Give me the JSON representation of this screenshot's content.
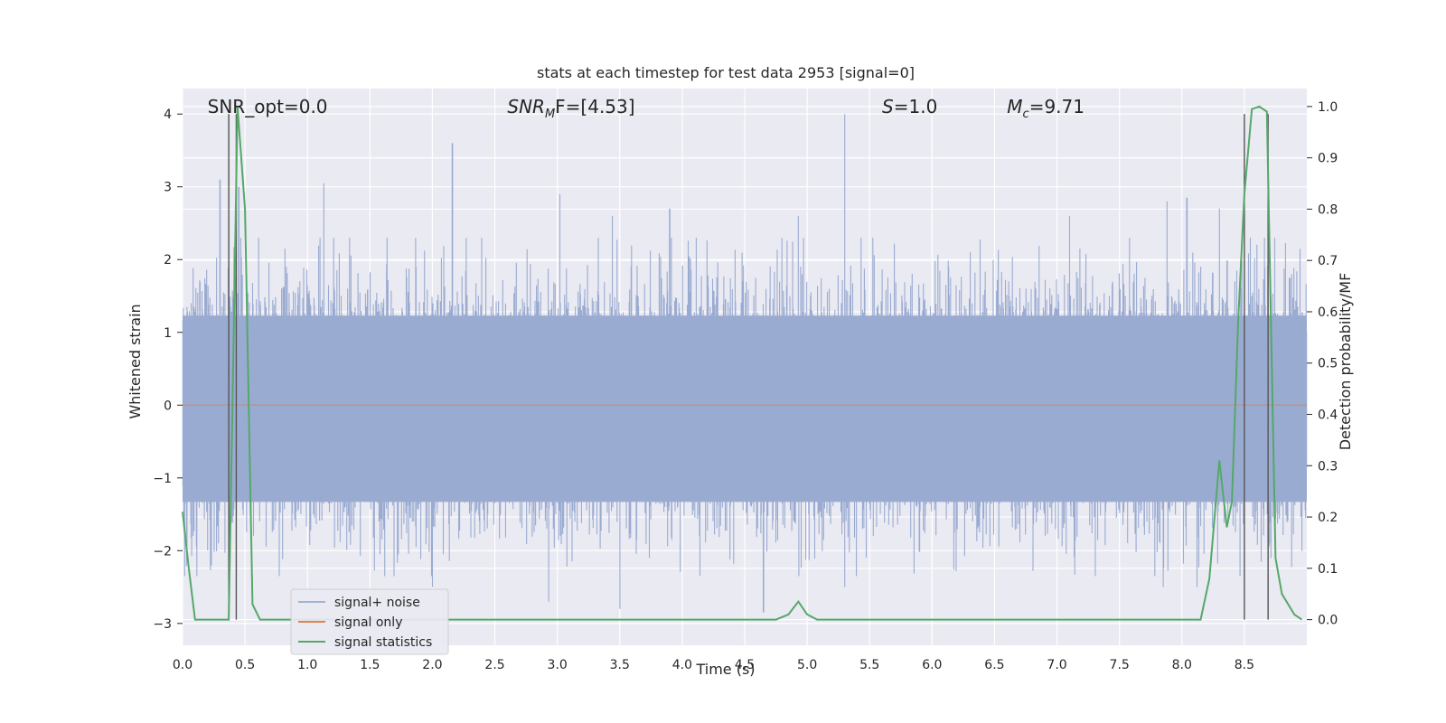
{
  "chart_data": {
    "type": "line",
    "title": "stats at each timestep for test data 2953 [signal=0]",
    "xlabel": "Time (s)",
    "ylabel_left": "Whitened strain",
    "ylabel_right": "Detection probability/MF",
    "xlim": [
      0.0,
      9.0
    ],
    "ylim_left": [
      -3.3,
      4.35
    ],
    "ylim_right": [
      -0.05,
      1.035
    ],
    "x_ticks": [
      "0.0",
      "0.5",
      "1.0",
      "1.5",
      "2.0",
      "2.5",
      "3.0",
      "3.5",
      "4.0",
      "4.5",
      "5.0",
      "5.5",
      "6.0",
      "6.5",
      "7.0",
      "7.5",
      "8.0",
      "8.5"
    ],
    "x_tick_values": [
      0.0,
      0.5,
      1.0,
      1.5,
      2.0,
      2.5,
      3.0,
      3.5,
      4.0,
      4.5,
      5.0,
      5.5,
      6.0,
      6.5,
      7.0,
      7.5,
      8.0,
      8.5
    ],
    "y_left_ticks": [
      "−3",
      "−2",
      "−1",
      "0",
      "1",
      "2",
      "3",
      "4"
    ],
    "y_left_tick_values": [
      -3,
      -2,
      -1,
      0,
      1,
      2,
      3,
      4
    ],
    "y_right_ticks": [
      "0.0",
      "0.1",
      "0.2",
      "0.3",
      "0.4",
      "0.5",
      "0.6",
      "0.7",
      "0.8",
      "0.9",
      "1.0"
    ],
    "y_right_tick_values": [
      0.0,
      0.1,
      0.2,
      0.3,
      0.4,
      0.5,
      0.6,
      0.7,
      0.8,
      0.9,
      1.0
    ],
    "grid": true,
    "legend_placement": "lower-left",
    "annotations": [
      {
        "text": "SNR_opt=0.0",
        "x": 0.2,
        "y": 4.1
      },
      {
        "text": "SNR",
        "sub": "M",
        "rest": "F=[4.53]",
        "italic": true,
        "x": 2.6,
        "y": 4.1
      },
      {
        "text": "S",
        "rest": "=1.0",
        "italic": true,
        "x": 5.6,
        "y": 4.1
      },
      {
        "text": "M",
        "sub": "c",
        "rest": "=9.71",
        "italic": true,
        "x": 6.6,
        "y": 4.1
      }
    ],
    "vertical_lines_x": [
      0.37,
      0.43,
      8.5,
      8.69
    ],
    "vertical_lines_ymax": 4.0,
    "series": [
      {
        "name": "signal+ noise",
        "color": "#4c72b0",
        "kind": "noise",
        "envelope_typical": [
          -1.6,
          1.5
        ],
        "peaks": [
          {
            "x": 0.3,
            "y": 3.1
          },
          {
            "x": 0.45,
            "y": 3.0
          },
          {
            "x": 1.13,
            "y": 3.05
          },
          {
            "x": 2.16,
            "y": 3.6
          },
          {
            "x": 3.02,
            "y": 2.9
          },
          {
            "x": 3.44,
            "y": 2.6
          },
          {
            "x": 3.9,
            "y": 2.7
          },
          {
            "x": 5.3,
            "y": 4.0
          },
          {
            "x": 4.93,
            "y": 2.6
          },
          {
            "x": 7.1,
            "y": 2.6
          },
          {
            "x": 7.88,
            "y": 2.8
          },
          {
            "x": 8.04,
            "y": 2.85
          },
          {
            "x": 8.3,
            "y": 2.7
          },
          {
            "x": 2.0,
            "y": -2.5
          },
          {
            "x": 2.93,
            "y": -2.7
          },
          {
            "x": 3.5,
            "y": -2.8
          },
          {
            "x": 4.65,
            "y": -2.85
          },
          {
            "x": 5.3,
            "y": -2.5
          },
          {
            "x": 7.85,
            "y": -2.5
          },
          {
            "x": 8.12,
            "y": -2.5
          }
        ]
      },
      {
        "name": "signal only",
        "color": "#dd8452",
        "x": [
          0.0,
          9.0
        ],
        "y": [
          0.0,
          0.0
        ]
      },
      {
        "name": "signal statistics",
        "color": "#55a868",
        "axis": "right",
        "x": [
          0.0,
          0.05,
          0.1,
          0.2,
          0.3,
          0.37,
          0.4,
          0.44,
          0.5,
          0.56,
          0.62,
          0.7,
          1.0,
          2.0,
          3.0,
          4.0,
          4.5,
          4.75,
          4.85,
          4.93,
          5.0,
          5.08,
          5.2,
          6.0,
          7.0,
          8.0,
          8.15,
          8.22,
          8.3,
          8.36,
          8.4,
          8.45,
          8.5,
          8.56,
          8.62,
          8.68,
          8.75,
          8.8,
          8.9,
          8.96
        ],
        "y": [
          0.21,
          0.1,
          0.0,
          0.0,
          0.0,
          0.0,
          0.42,
          1.0,
          0.8,
          0.03,
          0.0,
          0.0,
          0.0,
          0.0,
          0.0,
          0.0,
          0.0,
          0.0,
          0.01,
          0.035,
          0.01,
          0.0,
          0.0,
          0.0,
          0.0,
          0.0,
          0.0,
          0.08,
          0.31,
          0.18,
          0.23,
          0.58,
          0.83,
          0.995,
          1.0,
          0.99,
          0.12,
          0.05,
          0.01,
          0.0
        ]
      }
    ]
  }
}
